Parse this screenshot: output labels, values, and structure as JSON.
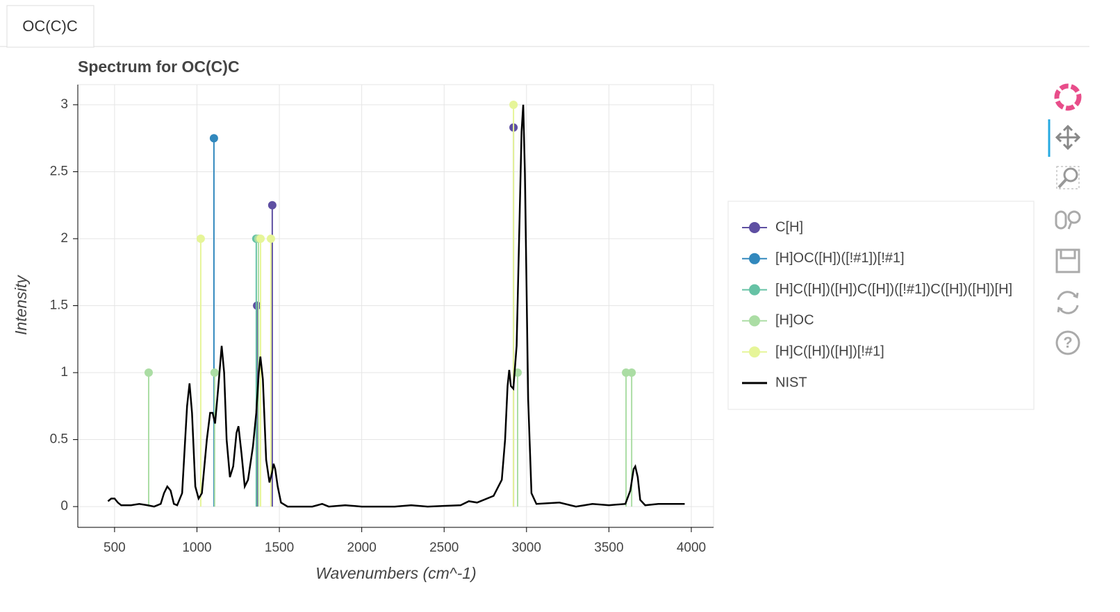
{
  "tab": "OC(C)C",
  "chart_data": {
    "type": "stem",
    "title": "Spectrum for OC(C)C",
    "x_label": "Wavenumbers (cm^-1)",
    "y_label": "Intensity",
    "xlim": [
      277,
      4135
    ],
    "ylim": [
      -0.155,
      3.15
    ],
    "xticks": [
      500,
      1000,
      1500,
      2000,
      2500,
      3000,
      3500,
      4000
    ],
    "yticks": [
      0,
      0.5,
      1,
      1.5,
      2,
      2.5,
      3
    ],
    "grid": true,
    "legend": "right",
    "series": [
      {
        "name": "C[H]",
        "color": "#5e4fa2",
        "kind": "stem",
        "x": [
          1365,
          1457,
          2921
        ],
        "values": [
          1.5,
          2.25,
          2.83
        ]
      },
      {
        "name": "[H]OC([H])([!#1])[!#1]",
        "color": "#3288bd",
        "kind": "stem",
        "x": [
          1103
        ],
        "values": [
          2.75
        ]
      },
      {
        "name": "[H]C([H])([H])C([H])([!#1])C([H])([H])[H]",
        "color": "#66c2a5",
        "kind": "stem",
        "x": [
          1360
        ],
        "values": [
          2.0
        ]
      },
      {
        "name": "[H]OC",
        "color": "#abdda4",
        "kind": "stem",
        "x": [
          707,
          1107,
          1373,
          2946,
          3604,
          3638
        ],
        "values": [
          1,
          1,
          2,
          1,
          1,
          1
        ]
      },
      {
        "name": "[H]C([H])([H])[!#1]",
        "color": "#e6f598",
        "kind": "stem",
        "x": [
          1023,
          1386,
          1449,
          2921
        ],
        "values": [
          2,
          2,
          2,
          3
        ]
      },
      {
        "name": "NIST",
        "color": "#000000",
        "kind": "line",
        "x": [
          460,
          480,
          500,
          520,
          540,
          600,
          650,
          700,
          740,
          780,
          800,
          820,
          840,
          860,
          880,
          910,
          940,
          955,
          970,
          990,
          1010,
          1030,
          1060,
          1080,
          1095,
          1110,
          1130,
          1150,
          1165,
          1180,
          1200,
          1220,
          1240,
          1252,
          1270,
          1290,
          1310,
          1340,
          1360,
          1375,
          1385,
          1400,
          1420,
          1440,
          1455,
          1465,
          1475,
          1490,
          1510,
          1550,
          1700,
          1760,
          1800,
          1900,
          2000,
          2200,
          2300,
          2400,
          2600,
          2650,
          2700,
          2800,
          2850,
          2870,
          2885,
          2895,
          2905,
          2920,
          2940,
          2955,
          2970,
          2980,
          2990,
          3010,
          3030,
          3060,
          3200,
          3300,
          3400,
          3500,
          3600,
          3630,
          3650,
          3660,
          3675,
          3690,
          3720,
          3800,
          3900,
          3960
        ],
        "values": [
          0.04,
          0.06,
          0.06,
          0.03,
          0.01,
          0.01,
          0.02,
          0.01,
          0.0,
          0.02,
          0.1,
          0.15,
          0.12,
          0.02,
          0.01,
          0.1,
          0.75,
          0.92,
          0.7,
          0.15,
          0.06,
          0.1,
          0.5,
          0.7,
          0.7,
          0.62,
          0.9,
          1.2,
          1.0,
          0.5,
          0.22,
          0.3,
          0.55,
          0.6,
          0.4,
          0.15,
          0.2,
          0.45,
          0.7,
          1.0,
          1.12,
          0.95,
          0.35,
          0.18,
          0.25,
          0.32,
          0.28,
          0.15,
          0.03,
          0.0,
          0.0,
          0.02,
          0.0,
          0.01,
          0.0,
          0.0,
          0.01,
          0.0,
          0.01,
          0.04,
          0.03,
          0.08,
          0.2,
          0.5,
          0.9,
          1.02,
          0.9,
          0.88,
          1.2,
          2.0,
          2.8,
          3.0,
          2.5,
          0.8,
          0.1,
          0.02,
          0.03,
          0.0,
          0.02,
          0.01,
          0.02,
          0.12,
          0.28,
          0.3,
          0.22,
          0.05,
          0.01,
          0.02,
          0.02,
          0.02
        ]
      }
    ]
  }
}
